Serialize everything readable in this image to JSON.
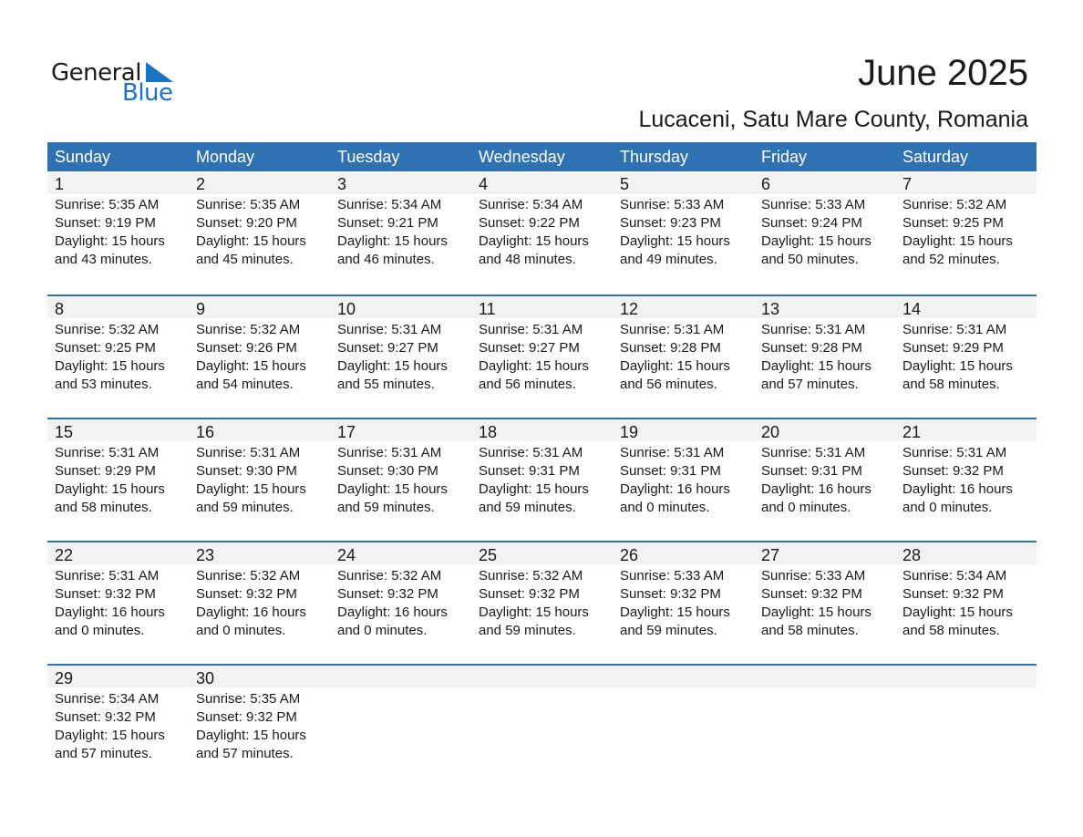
{
  "logo": {
    "line1": "General",
    "line2": "Blue",
    "color": "#1a73c4"
  },
  "title": "June 2025",
  "subtitle": "Lucaceni, Satu Mare County, Romania",
  "header_color": "#2e72b4",
  "weekdays": [
    "Sunday",
    "Monday",
    "Tuesday",
    "Wednesday",
    "Thursday",
    "Friday",
    "Saturday"
  ],
  "weeks": [
    [
      {
        "day": "1",
        "sunrise": "Sunrise: 5:35 AM",
        "sunset": "Sunset: 9:19 PM",
        "daylight": "Daylight: 15 hours",
        "minutes": "and 43 minutes."
      },
      {
        "day": "2",
        "sunrise": "Sunrise: 5:35 AM",
        "sunset": "Sunset: 9:20 PM",
        "daylight": "Daylight: 15 hours",
        "minutes": "and 45 minutes."
      },
      {
        "day": "3",
        "sunrise": "Sunrise: 5:34 AM",
        "sunset": "Sunset: 9:21 PM",
        "daylight": "Daylight: 15 hours",
        "minutes": "and 46 minutes."
      },
      {
        "day": "4",
        "sunrise": "Sunrise: 5:34 AM",
        "sunset": "Sunset: 9:22 PM",
        "daylight": "Daylight: 15 hours",
        "minutes": "and 48 minutes."
      },
      {
        "day": "5",
        "sunrise": "Sunrise: 5:33 AM",
        "sunset": "Sunset: 9:23 PM",
        "daylight": "Daylight: 15 hours",
        "minutes": "and 49 minutes."
      },
      {
        "day": "6",
        "sunrise": "Sunrise: 5:33 AM",
        "sunset": "Sunset: 9:24 PM",
        "daylight": "Daylight: 15 hours",
        "minutes": "and 50 minutes."
      },
      {
        "day": "7",
        "sunrise": "Sunrise: 5:32 AM",
        "sunset": "Sunset: 9:25 PM",
        "daylight": "Daylight: 15 hours",
        "minutes": "and 52 minutes."
      }
    ],
    [
      {
        "day": "8",
        "sunrise": "Sunrise: 5:32 AM",
        "sunset": "Sunset: 9:25 PM",
        "daylight": "Daylight: 15 hours",
        "minutes": "and 53 minutes."
      },
      {
        "day": "9",
        "sunrise": "Sunrise: 5:32 AM",
        "sunset": "Sunset: 9:26 PM",
        "daylight": "Daylight: 15 hours",
        "minutes": "and 54 minutes."
      },
      {
        "day": "10",
        "sunrise": "Sunrise: 5:31 AM",
        "sunset": "Sunset: 9:27 PM",
        "daylight": "Daylight: 15 hours",
        "minutes": "and 55 minutes."
      },
      {
        "day": "11",
        "sunrise": "Sunrise: 5:31 AM",
        "sunset": "Sunset: 9:27 PM",
        "daylight": "Daylight: 15 hours",
        "minutes": "and 56 minutes."
      },
      {
        "day": "12",
        "sunrise": "Sunrise: 5:31 AM",
        "sunset": "Sunset: 9:28 PM",
        "daylight": "Daylight: 15 hours",
        "minutes": "and 56 minutes."
      },
      {
        "day": "13",
        "sunrise": "Sunrise: 5:31 AM",
        "sunset": "Sunset: 9:28 PM",
        "daylight": "Daylight: 15 hours",
        "minutes": "and 57 minutes."
      },
      {
        "day": "14",
        "sunrise": "Sunrise: 5:31 AM",
        "sunset": "Sunset: 9:29 PM",
        "daylight": "Daylight: 15 hours",
        "minutes": "and 58 minutes."
      }
    ],
    [
      {
        "day": "15",
        "sunrise": "Sunrise: 5:31 AM",
        "sunset": "Sunset: 9:29 PM",
        "daylight": "Daylight: 15 hours",
        "minutes": "and 58 minutes."
      },
      {
        "day": "16",
        "sunrise": "Sunrise: 5:31 AM",
        "sunset": "Sunset: 9:30 PM",
        "daylight": "Daylight: 15 hours",
        "minutes": "and 59 minutes."
      },
      {
        "day": "17",
        "sunrise": "Sunrise: 5:31 AM",
        "sunset": "Sunset: 9:30 PM",
        "daylight": "Daylight: 15 hours",
        "minutes": "and 59 minutes."
      },
      {
        "day": "18",
        "sunrise": "Sunrise: 5:31 AM",
        "sunset": "Sunset: 9:31 PM",
        "daylight": "Daylight: 15 hours",
        "minutes": "and 59 minutes."
      },
      {
        "day": "19",
        "sunrise": "Sunrise: 5:31 AM",
        "sunset": "Sunset: 9:31 PM",
        "daylight": "Daylight: 16 hours",
        "minutes": "and 0 minutes."
      },
      {
        "day": "20",
        "sunrise": "Sunrise: 5:31 AM",
        "sunset": "Sunset: 9:31 PM",
        "daylight": "Daylight: 16 hours",
        "minutes": "and 0 minutes."
      },
      {
        "day": "21",
        "sunrise": "Sunrise: 5:31 AM",
        "sunset": "Sunset: 9:32 PM",
        "daylight": "Daylight: 16 hours",
        "minutes": "and 0 minutes."
      }
    ],
    [
      {
        "day": "22",
        "sunrise": "Sunrise: 5:31 AM",
        "sunset": "Sunset: 9:32 PM",
        "daylight": "Daylight: 16 hours",
        "minutes": "and 0 minutes."
      },
      {
        "day": "23",
        "sunrise": "Sunrise: 5:32 AM",
        "sunset": "Sunset: 9:32 PM",
        "daylight": "Daylight: 16 hours",
        "minutes": "and 0 minutes."
      },
      {
        "day": "24",
        "sunrise": "Sunrise: 5:32 AM",
        "sunset": "Sunset: 9:32 PM",
        "daylight": "Daylight: 16 hours",
        "minutes": "and 0 minutes."
      },
      {
        "day": "25",
        "sunrise": "Sunrise: 5:32 AM",
        "sunset": "Sunset: 9:32 PM",
        "daylight": "Daylight: 15 hours",
        "minutes": "and 59 minutes."
      },
      {
        "day": "26",
        "sunrise": "Sunrise: 5:33 AM",
        "sunset": "Sunset: 9:32 PM",
        "daylight": "Daylight: 15 hours",
        "minutes": "and 59 minutes."
      },
      {
        "day": "27",
        "sunrise": "Sunrise: 5:33 AM",
        "sunset": "Sunset: 9:32 PM",
        "daylight": "Daylight: 15 hours",
        "minutes": "and 58 minutes."
      },
      {
        "day": "28",
        "sunrise": "Sunrise: 5:34 AM",
        "sunset": "Sunset: 9:32 PM",
        "daylight": "Daylight: 15 hours",
        "minutes": "and 58 minutes."
      }
    ],
    [
      {
        "day": "29",
        "sunrise": "Sunrise: 5:34 AM",
        "sunset": "Sunset: 9:32 PM",
        "daylight": "Daylight: 15 hours",
        "minutes": "and 57 minutes."
      },
      {
        "day": "30",
        "sunrise": "Sunrise: 5:35 AM",
        "sunset": "Sunset: 9:32 PM",
        "daylight": "Daylight: 15 hours",
        "minutes": "and 57 minutes."
      }
    ]
  ]
}
